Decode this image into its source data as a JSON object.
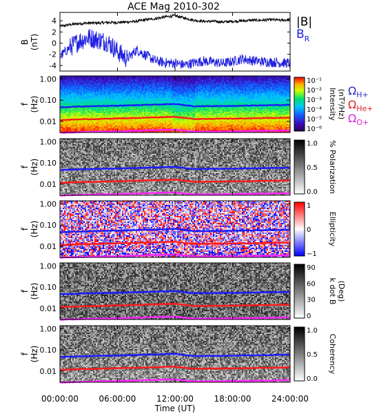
{
  "title": "ACE Mag 2010-302",
  "x_axis": {
    "label": "Time (UT)",
    "ticks": [
      "00:00:00",
      "06:00:00",
      "12:00:00",
      "18:00:00",
      "24:00:00"
    ],
    "range_hours": [
      0,
      24
    ]
  },
  "legend_b": {
    "total": "|B|",
    "radial": "B",
    "radial_sub": "R",
    "total_color": "#000000",
    "radial_color": "#2020e0"
  },
  "legend_gyro": [
    {
      "sym": "Ω",
      "sub": "H+",
      "color": "#2a2ad0"
    },
    {
      "sym": "Ω",
      "sub": "He+",
      "color": "#e02020"
    },
    {
      "sym": "Ω",
      "sub": "O+",
      "color": "#e020e0"
    }
  ],
  "colors": {
    "hplus": "#1a1aff",
    "heplus": "#ff1a1a",
    "oplus": "#ff22ff",
    "b_total": "#000000",
    "b_radial": "#2020e0"
  },
  "chart_data": [
    {
      "type": "line",
      "panel": "magnetic field",
      "ylabel": "B",
      "yunit": "(nT)",
      "yticks": [
        "4",
        "2",
        "0",
        "-2",
        "-4"
      ],
      "ylim": [
        -5,
        5.5
      ],
      "x_hours": [
        0,
        1,
        2,
        3,
        4,
        5,
        6,
        7,
        8,
        9,
        10,
        11,
        12,
        13,
        14,
        15,
        16,
        17,
        18,
        19,
        20,
        21,
        22,
        23,
        24
      ],
      "series": [
        {
          "name": "|B|",
          "values": [
            3.0,
            3.3,
            3.5,
            3.6,
            3.6,
            3.7,
            3.7,
            3.8,
            3.9,
            4.2,
            4.4,
            4.7,
            4.9,
            4.5,
            4.1,
            3.9,
            3.9,
            3.8,
            3.9,
            4.0,
            4.1,
            4.1,
            4.2,
            4.1,
            4.2
          ]
        },
        {
          "name": "BR",
          "values": [
            -2.4,
            -0.8,
            0.4,
            1.0,
            0.6,
            0.2,
            -1.5,
            -2.8,
            -1.2,
            -2.2,
            -3.2,
            -3.5,
            -3.6,
            -3.9,
            -3.5,
            -3.2,
            -3.4,
            -3.6,
            -3.3,
            -2.8,
            -3.1,
            -3.3,
            -3.4,
            -3.5,
            -3.6
          ]
        }
      ]
    },
    {
      "type": "heatmap",
      "panel": "wave power spectrum",
      "ylabel": "f",
      "yunit": "(Hz)",
      "yticks": [
        "1.00",
        "0.10",
        "0.01"
      ],
      "ylim_hz": [
        0.003,
        1.4
      ],
      "yscale": "log",
      "colorbar": {
        "label": "Intensity",
        "unit": "(nT²/Hz)",
        "ticks": [
          "10⁻¹",
          "10⁻²",
          "10⁻³",
          "10⁻⁴",
          "10⁻⁵",
          "10⁻⁶"
        ]
      }
    },
    {
      "type": "heatmap",
      "panel": "polarization",
      "ylabel": "f",
      "yunit": "(Hz)",
      "yticks": [
        "1.00",
        "0.10",
        "0.01"
      ],
      "ylim_hz": [
        0.003,
        1.4
      ],
      "yscale": "log",
      "colorbar": {
        "label": "% Polarization",
        "ticks": [
          "1.0",
          "0.5",
          "0.0"
        ],
        "range": [
          0,
          1
        ]
      }
    },
    {
      "type": "heatmap",
      "panel": "ellipticity",
      "ylabel": "f",
      "yunit": "(Hz)",
      "yticks": [
        "1.00",
        "0.10",
        "0.01"
      ],
      "ylim_hz": [
        0.003,
        1.4
      ],
      "yscale": "log",
      "colorbar": {
        "label": "Ellipticity",
        "ticks": [
          "1",
          "0",
          "−1"
        ],
        "range": [
          -1,
          1
        ]
      }
    },
    {
      "type": "heatmap",
      "panel": "wave normal angle",
      "ylabel": "f",
      "yunit": "(Hz)",
      "yticks": [
        "1.00",
        "0.10",
        "0.01"
      ],
      "ylim_hz": [
        0.003,
        1.4
      ],
      "yscale": "log",
      "colorbar": {
        "label": "k dot B",
        "unit": "(Deg)",
        "ticks": [
          "90",
          "60",
          "30",
          "0"
        ],
        "range": [
          0,
          90
        ]
      }
    },
    {
      "type": "heatmap",
      "panel": "coherency",
      "ylabel": "f",
      "yunit": "(Hz)",
      "yticks": [
        "1.00",
        "0.10",
        "0.01"
      ],
      "ylim_hz": [
        0.003,
        1.4
      ],
      "yscale": "log",
      "colorbar": {
        "label": "Coherency",
        "ticks": [
          "1.0",
          "0.5",
          "0.0"
        ],
        "range": [
          0,
          1
        ]
      }
    }
  ],
  "gyrofrequency_hz": {
    "x_hours": [
      0,
      2,
      4,
      6,
      8,
      10,
      12,
      13,
      14,
      16,
      18,
      20,
      22,
      24
    ],
    "H+": [
      0.046,
      0.05,
      0.053,
      0.055,
      0.058,
      0.062,
      0.066,
      0.058,
      0.052,
      0.053,
      0.054,
      0.056,
      0.058,
      0.06
    ],
    "He+": [
      0.0115,
      0.0125,
      0.013,
      0.0138,
      0.0145,
      0.0155,
      0.0165,
      0.0145,
      0.013,
      0.0133,
      0.0135,
      0.014,
      0.0145,
      0.015
    ],
    "O+": [
      0.0029,
      0.0031,
      0.0033,
      0.0034,
      0.0036,
      0.0039,
      0.0041,
      0.0036,
      0.0033,
      0.0033,
      0.0034,
      0.0035,
      0.0036,
      0.0038
    ]
  }
}
